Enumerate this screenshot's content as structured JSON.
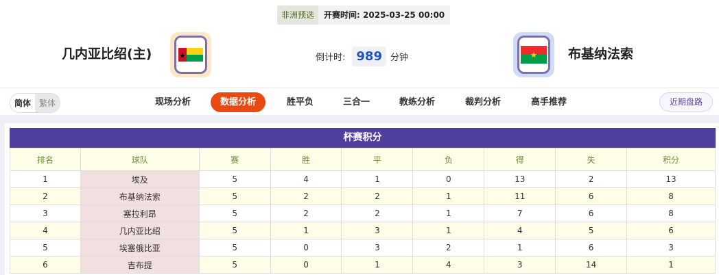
{
  "match": {
    "league": "非洲预选",
    "time_label": "开赛时间:",
    "time": "2025-03-25 00:00",
    "home": {
      "name": "几内亚比绍(主)",
      "flag": "guinea-bissau"
    },
    "away": {
      "name": "布基纳法索",
      "flag": "burkina-faso"
    },
    "countdown_label": "倒计时:",
    "countdown": "989",
    "countdown_unit": "分钟"
  },
  "lang": {
    "simplified": "简体",
    "traditional": "繁体"
  },
  "tabs": [
    "现场分析",
    "数据分析",
    "胜平负",
    "三合一",
    "教练分析",
    "裁判分析",
    "高手推荐"
  ],
  "active_tab": 1,
  "recent_button": "近期盘路",
  "colors": {
    "accent": "#e84a12",
    "table_header": "#503f9c",
    "countdown": "#1a56c8"
  },
  "standings": {
    "title": "杯赛积分",
    "columns": [
      "排名",
      "球队",
      "赛",
      "胜",
      "平",
      "负",
      "得",
      "失",
      "积分"
    ],
    "rows": [
      [
        "1",
        "埃及",
        "5",
        "4",
        "1",
        "0",
        "13",
        "2",
        "13"
      ],
      [
        "2",
        "布基纳法索",
        "5",
        "2",
        "2",
        "1",
        "11",
        "6",
        "8"
      ],
      [
        "3",
        "塞拉利昂",
        "5",
        "2",
        "2",
        "1",
        "7",
        "6",
        "8"
      ],
      [
        "4",
        "几内亚比绍",
        "5",
        "1",
        "3",
        "1",
        "4",
        "5",
        "6"
      ],
      [
        "5",
        "埃塞俄比亚",
        "5",
        "0",
        "3",
        "2",
        "1",
        "6",
        "3"
      ],
      [
        "6",
        "吉布提",
        "5",
        "0",
        "1",
        "4",
        "3",
        "14",
        "1"
      ]
    ]
  }
}
